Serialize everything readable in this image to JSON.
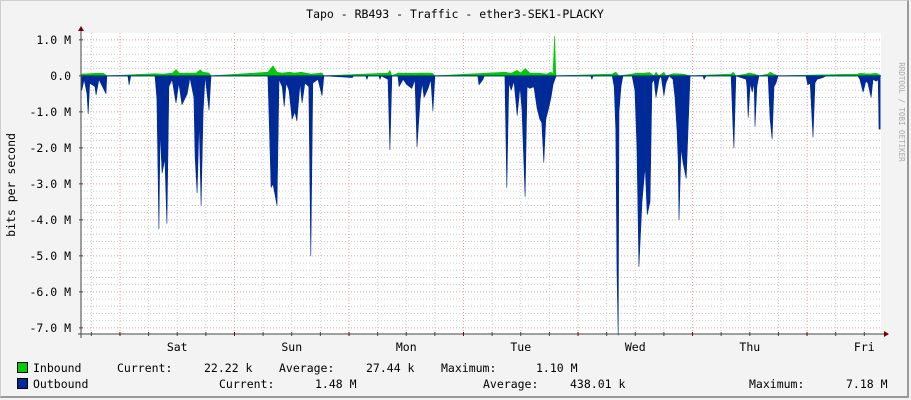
{
  "chart_data": {
    "type": "area",
    "title": "Tapo - RB493 - Traffic - ether3-SEK1-PLACKY",
    "ylabel": "bits per second",
    "watermark": "RRDTOOL / TOBI OETIKER",
    "xlim": [
      "Fri 15:50",
      "Fri 15:30"
    ],
    "ylim": [
      -7.17,
      1.19
    ],
    "y_unit": "M",
    "y_ticks": [
      {
        "value": 1,
        "label": "1.0 M"
      },
      {
        "value": 0,
        "label": "0.0"
      },
      {
        "value": -1,
        "label": "-1.0 M"
      },
      {
        "value": -2,
        "label": "-2.0 M"
      },
      {
        "value": -3,
        "label": "-3.0 M"
      },
      {
        "value": -4,
        "label": "-4.0 M"
      },
      {
        "value": -5,
        "label": "-5.0 M"
      },
      {
        "value": -6,
        "label": "-6.0 M"
      },
      {
        "value": -7,
        "label": "-7.0 M"
      }
    ],
    "x_ticks": [
      {
        "at": "Sat 12:00",
        "label": "Sat"
      },
      {
        "at": "Sun 12:00",
        "label": "Sun"
      },
      {
        "at": "Mon 12:00",
        "label": "Mon"
      },
      {
        "at": "Tue 12:00",
        "label": "Tue"
      },
      {
        "at": "Wed 12:00",
        "label": "Wed"
      },
      {
        "at": "Thu 12:00",
        "label": "Thu"
      },
      {
        "at": "Fri 12:00",
        "label": "Fri"
      }
    ],
    "grid": true,
    "colors": {
      "inbound": "#00cc00",
      "outbound": "#002a97",
      "major_grid": "#e8a0a0",
      "minor_grid": "#cccccc",
      "axis": "#7a0000"
    },
    "series": [
      {
        "name": "Inbound",
        "color": "#00cc00",
        "points": [
          [
            "Fri 16:00",
            0.05
          ],
          [
            "Fri 19:00",
            0.07
          ],
          [
            "Fri 20:30",
            0.07
          ],
          [
            "Fri 21:15",
            0
          ],
          [
            "Sat 07:20",
            0.06
          ],
          [
            "Sat 09:00",
            0.05
          ],
          [
            "Sat 11:00",
            0.08
          ],
          [
            "Sat 11:45",
            0.17
          ],
          [
            "Sat 12:30",
            0.07
          ],
          [
            "Sat 14:00",
            0.08
          ],
          [
            "Sat 16:00",
            0.08
          ],
          [
            "Sat 16:50",
            0.17
          ],
          [
            "Sat 17:20",
            0.1
          ],
          [
            "Sat 18:40",
            0.08
          ],
          [
            "Sat 19:05",
            0
          ],
          [
            "Sun 07:00",
            0.1
          ],
          [
            "Sun 08:05",
            0.28
          ],
          [
            "Sun 08:55",
            0.1
          ],
          [
            "Sun 10:00",
            0.08
          ],
          [
            "Sun 11:30",
            0.1
          ],
          [
            "Sun 12:30",
            0.08
          ],
          [
            "Sun 14:00",
            0.1
          ],
          [
            "Sun 16:00",
            0.05
          ],
          [
            "Sun 18:20",
            0.08
          ],
          [
            "Sun 18:45",
            0
          ],
          [
            "Mon 08:10",
            0.08
          ],
          [
            "Mon 08:35",
            0.15
          ],
          [
            "Mon 09:00",
            0
          ],
          [
            "Mon 10:15",
            0.08
          ],
          [
            "Mon 13:00",
            0.07
          ],
          [
            "Mon 14:30",
            0.08
          ],
          [
            "Mon 16:30",
            0.08
          ],
          [
            "Mon 17:30",
            0.07
          ],
          [
            "Mon 18:00",
            0
          ],
          [
            "Tue 08:40",
            0.1
          ],
          [
            "Tue 10:00",
            0.07
          ],
          [
            "Tue 11:15",
            0.15
          ],
          [
            "Tue 12:00",
            0.08
          ],
          [
            "Tue 12:55",
            0.2
          ],
          [
            "Tue 14:00",
            0.07
          ],
          [
            "Tue 15:30",
            0.08
          ],
          [
            "Tue 17:30",
            0.05
          ],
          [
            "Tue 18:20",
            0.1
          ],
          [
            "Tue 18:45",
            0.05
          ],
          [
            "Tue 19:05",
            1.1
          ],
          [
            "Tue 19:20",
            0.05
          ],
          [
            "Tue 19:25",
            0
          ],
          [
            "Wed 07:10",
            0.05
          ],
          [
            "Wed 07:55",
            0.1
          ],
          [
            "Wed 08:35",
            0
          ],
          [
            "Wed 11:20",
            0.05
          ],
          [
            "Wed 12:20",
            0.08
          ],
          [
            "Wed 13:30",
            0.07
          ],
          [
            "Wed 15:00",
            0.09
          ],
          [
            "Wed 15:55",
            0
          ],
          [
            "Wed 16:20",
            0.1
          ],
          [
            "Wed 17:00",
            0
          ],
          [
            "Wed 18:00",
            0.1
          ],
          [
            "Wed 18:25",
            0
          ],
          [
            "Wed 20:00",
            0.06
          ],
          [
            "Wed 22:00",
            0.05
          ],
          [
            "Wed 23:30",
            0
          ],
          [
            "Thu 08:05",
            0.05
          ],
          [
            "Thu 08:30",
            0.1
          ],
          [
            "Thu 09:05",
            0
          ],
          [
            "Thu 11:15",
            0.05
          ],
          [
            "Thu 11:40",
            0.08
          ],
          [
            "Thu 13:00",
            0.05
          ],
          [
            "Thu 13:55",
            0
          ],
          [
            "Thu 15:50",
            0.05
          ],
          [
            "Thu 16:15",
            0.1
          ],
          [
            "Thu 17:00",
            0.05
          ],
          [
            "Thu 17:55",
            0
          ],
          [
            "Fri 10:40",
            0.05
          ],
          [
            "Fri 11:05",
            0.07
          ],
          [
            "Fri 13:00",
            0.05
          ],
          [
            "Fri 14:30",
            0.07
          ],
          [
            "Fri 15:20",
            0.02
          ]
        ]
      },
      {
        "name": "Outbound",
        "color": "#002a97",
        "points": [
          [
            "Fri 16:00",
            -0.4
          ],
          [
            "Fri 16:30",
            -0.1
          ],
          [
            "Fri 17:05",
            -0.5
          ],
          [
            "Fri 17:20",
            -1.05
          ],
          [
            "Fri 17:40",
            -0.2
          ],
          [
            "Fri 18:45",
            -0.3
          ],
          [
            "Fri 19:00",
            -0.53
          ],
          [
            "Fri 19:35",
            -0.1
          ],
          [
            "Fri 21:05",
            -0.5
          ],
          [
            "Fri 21:15",
            0
          ],
          [
            "Sat 01:40",
            0
          ],
          [
            "Sat 01:55",
            -0.25
          ],
          [
            "Sat 02:15",
            0
          ],
          [
            "Sat 07:20",
            0
          ],
          [
            "Sat 07:45",
            -0.64
          ],
          [
            "Sat 08:10",
            -4.25
          ],
          [
            "Sat 08:25",
            -1.5
          ],
          [
            "Sat 08:50",
            -2.7
          ],
          [
            "Sat 09:25",
            -2.3
          ],
          [
            "Sat 09:50",
            -4.1
          ],
          [
            "Sat 10:15",
            -0.3
          ],
          [
            "Sat 10:55",
            -0.1
          ],
          [
            "Sat 11:45",
            -0.75
          ],
          [
            "Sat 12:20",
            -0.2
          ],
          [
            "Sat 13:00",
            -0.8
          ],
          [
            "Sat 14:05",
            -0.5
          ],
          [
            "Sat 14:40",
            -0.05
          ],
          [
            "Sat 15:30",
            -0.6
          ],
          [
            "Sat 15:45",
            -2.25
          ],
          [
            "Sat 16:10",
            -3.25
          ],
          [
            "Sat 16:35",
            -1.2
          ],
          [
            "Sat 17:00",
            -3.6
          ],
          [
            "Sat 17:25",
            -1.0
          ],
          [
            "Sat 17:50",
            0
          ],
          [
            "Sat 18:40",
            -0.95
          ],
          [
            "Sat 19:05",
            0
          ],
          [
            "Sun 07:00",
            0
          ],
          [
            "Sun 07:40",
            -3.1
          ],
          [
            "Sun 08:05",
            -3.0
          ],
          [
            "Sun 08:30",
            -3.3
          ],
          [
            "Sun 08:55",
            -3.6
          ],
          [
            "Sun 09:20",
            -0.1
          ],
          [
            "Sun 10:00",
            -0.3
          ],
          [
            "Sun 10:25",
            -0.85
          ],
          [
            "Sun 10:50",
            -0.2
          ],
          [
            "Sun 11:25",
            -0.4
          ],
          [
            "Sun 12:05",
            -1.2
          ],
          [
            "Sun 12:40",
            -1.0
          ],
          [
            "Sun 13:05",
            -1.25
          ],
          [
            "Sun 13:45",
            -0.2
          ],
          [
            "Sun 14:10",
            -0.75
          ],
          [
            "Sun 14:45",
            -0.2
          ],
          [
            "Sun 15:35",
            -0.3
          ],
          [
            "Sun 16:00",
            -5.0
          ],
          [
            "Sun 16:25",
            -0.2
          ],
          [
            "Sun 17:30",
            -0.1
          ],
          [
            "Sun 18:20",
            -0.55
          ],
          [
            "Sun 18:45",
            0
          ],
          [
            "Mon 00:40",
            -0.05
          ],
          [
            "Mon 01:00",
            0
          ],
          [
            "Mon 03:30",
            0
          ],
          [
            "Mon 03:45",
            -0.1
          ],
          [
            "Mon 04:00",
            0
          ],
          [
            "Mon 06:15",
            0
          ],
          [
            "Mon 06:30",
            -0.1
          ],
          [
            "Mon 06:45",
            0
          ],
          [
            "Mon 08:10",
            -0.1
          ],
          [
            "Mon 08:35",
            -2.05
          ],
          [
            "Mon 09:00",
            0
          ],
          [
            "Mon 10:15",
            0
          ],
          [
            "Mon 10:30",
            -0.3
          ],
          [
            "Mon 11:20",
            -0.1
          ],
          [
            "Mon 12:10",
            -0.25
          ],
          [
            "Mon 13:10",
            -0.35
          ],
          [
            "Mon 13:50",
            -0.1
          ],
          [
            "Mon 14:15",
            -1.97
          ],
          [
            "Mon 14:55",
            -0.65
          ],
          [
            "Mon 15:20",
            -0.2
          ],
          [
            "Mon 15:45",
            -0.6
          ],
          [
            "Mon 16:35",
            -0.35
          ],
          [
            "Mon 17:10",
            -0.1
          ],
          [
            "Mon 17:35",
            -0.97
          ],
          [
            "Mon 18:00",
            0
          ],
          [
            "Tue 03:00",
            0
          ],
          [
            "Tue 03:15",
            -0.25
          ],
          [
            "Tue 04:05",
            -0.1
          ],
          [
            "Tue 04:20",
            0
          ],
          [
            "Tue 08:40",
            0
          ],
          [
            "Tue 09:05",
            -3.1
          ],
          [
            "Tue 09:30",
            -0.2
          ],
          [
            "Tue 10:00",
            -0.4
          ],
          [
            "Tue 10:35",
            -0.15
          ],
          [
            "Tue 11:15",
            -1.1
          ],
          [
            "Tue 11:50",
            -0.3
          ],
          [
            "Tue 12:15",
            -0.95
          ],
          [
            "Tue 12:55",
            -3.35
          ],
          [
            "Tue 13:20",
            -0.3
          ],
          [
            "Tue 13:55",
            -0.35
          ],
          [
            "Tue 14:45",
            -0.3
          ],
          [
            "Tue 15:25",
            -0.9
          ],
          [
            "Tue 16:00",
            -1.2
          ],
          [
            "Tue 16:25",
            -1.3
          ],
          [
            "Tue 16:50",
            -2.4
          ],
          [
            "Tue 17:15",
            -1.2
          ],
          [
            "Tue 17:45",
            -0.95
          ],
          [
            "Tue 18:20",
            -0.6
          ],
          [
            "Tue 18:45",
            -0.25
          ],
          [
            "Tue 19:25",
            0
          ],
          [
            "Wed 02:40",
            0
          ],
          [
            "Wed 02:55",
            -0.1
          ],
          [
            "Wed 03:10",
            0
          ],
          [
            "Wed 07:10",
            0
          ],
          [
            "Wed 07:35",
            -0.3
          ],
          [
            "Wed 07:55",
            -1.5
          ],
          [
            "Wed 08:10",
            -5.5
          ],
          [
            "Wed 08:25",
            -7.2
          ],
          [
            "Wed 08:35",
            -1.0
          ],
          [
            "Wed 09:00",
            -0.3
          ],
          [
            "Wed 09:25",
            0
          ],
          [
            "Wed 11:20",
            0
          ],
          [
            "Wed 11:55",
            -0.4
          ],
          [
            "Wed 12:20",
            -1.95
          ],
          [
            "Wed 12:45",
            -5.3
          ],
          [
            "Wed 13:25",
            -3.5
          ],
          [
            "Wed 14:05",
            -2.5
          ],
          [
            "Wed 14:30",
            -3.85
          ],
          [
            "Wed 15:05",
            -3.5
          ],
          [
            "Wed 15:30",
            -0.2
          ],
          [
            "Wed 15:55",
            -0.1
          ],
          [
            "Wed 16:20",
            -0.6
          ],
          [
            "Wed 17:00",
            -0.1
          ],
          [
            "Wed 17:25",
            0
          ],
          [
            "Wed 18:00",
            -0.55
          ],
          [
            "Wed 18:25",
            -0.2
          ],
          [
            "Wed 19:05",
            0
          ],
          [
            "Wed 19:55",
            -0.1
          ],
          [
            "Wed 20:20",
            -0.6
          ],
          [
            "Wed 20:45",
            -1.5
          ],
          [
            "Wed 21:00",
            -2.35
          ],
          [
            "Wed 21:10",
            -4.0
          ],
          [
            "Wed 21:35",
            -2.0
          ],
          [
            "Wed 22:00",
            -2.4
          ],
          [
            "Wed 22:40",
            -2.85
          ],
          [
            "Wed 22:50",
            -2.25
          ],
          [
            "Wed 23:30",
            0
          ],
          [
            "Thu 02:10",
            0
          ],
          [
            "Thu 02:25",
            -0.1
          ],
          [
            "Thu 02:50",
            0
          ],
          [
            "Thu 08:05",
            0
          ],
          [
            "Thu 08:30",
            -1.5
          ],
          [
            "Thu 08:40",
            -2.0
          ],
          [
            "Thu 09:05",
            0
          ],
          [
            "Thu 11:15",
            -0.1
          ],
          [
            "Thu 11:25",
            -0.3
          ],
          [
            "Thu 11:40",
            -1.15
          ],
          [
            "Thu 12:05",
            -0.2
          ],
          [
            "Thu 12:30",
            -0.45
          ],
          [
            "Thu 12:55",
            -0.2
          ],
          [
            "Thu 13:05",
            -1.4
          ],
          [
            "Thu 13:30",
            -0.3
          ],
          [
            "Thu 13:55",
            0
          ],
          [
            "Thu 15:50",
            0
          ],
          [
            "Thu 16:15",
            -1.2
          ],
          [
            "Thu 16:40",
            -1.75
          ],
          [
            "Thu 17:05",
            -0.3
          ],
          [
            "Thu 17:30",
            -0.2
          ],
          [
            "Thu 17:55",
            0
          ],
          [
            "Thu 23:45",
            0
          ],
          [
            "Fri 00:10",
            -0.25
          ],
          [
            "Fri 00:40",
            -0.2
          ],
          [
            "Fri 01:15",
            -1.7
          ],
          [
            "Fri 01:40",
            -0.2
          ],
          [
            "Fri 02:05",
            -0.1
          ],
          [
            "Fri 03:20",
            -0.05
          ],
          [
            "Fri 04:00",
            0
          ],
          [
            "Fri 10:40",
            0
          ],
          [
            "Fri 11:05",
            -0.1
          ],
          [
            "Fri 11:45",
            -0.45
          ],
          [
            "Fri 12:20",
            -0.15
          ],
          [
            "Fri 12:45",
            -0.2
          ],
          [
            "Fri 13:25",
            -0.6
          ],
          [
            "Fri 13:50",
            -0.1
          ],
          [
            "Fri 14:30",
            -0.15
          ],
          [
            "Fri 14:55",
            -0.1
          ],
          [
            "Fri 15:05",
            -1.48
          ],
          [
            "Fri 15:20",
            -1.48
          ]
        ]
      }
    ]
  },
  "legend": {
    "inbound": {
      "label": "Inbound",
      "current_label": "Current:",
      "current": "22.22 k",
      "average_label": "Average:",
      "average": "27.44 k",
      "maximum_label": "Maximum:",
      "maximum": "1.10 M"
    },
    "outbound": {
      "label": "Outbound",
      "current_label": "Current:",
      "current": "1.48 M",
      "average_label": "Average:",
      "average": "438.01 k",
      "maximum_label": "Maximum:",
      "maximum": "7.18 M"
    }
  }
}
